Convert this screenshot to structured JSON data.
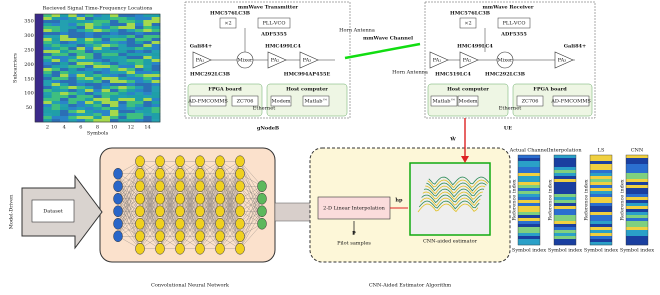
{
  "spectrogram": {
    "title": "Recieved Signal Time-Frequency Locations",
    "y_label": "Subcarriers",
    "x_label": "Symbols",
    "yticks": [
      50,
      100,
      150,
      200,
      250,
      300,
      350
    ],
    "xticks": [
      2,
      4,
      6,
      8,
      10,
      12,
      14
    ]
  },
  "gnodeb": {
    "name": "gNodeB",
    "title": "mmWave Transmitter",
    "lo": "HMC576LC3B",
    "mult": "×2",
    "pll": "PLL-VCO",
    "pll_chip": "ADF5355",
    "amp": "Gali84+",
    "mixer_chip": "HMC499LC4",
    "pa1": "PA₁",
    "mixer": "Mixer",
    "pa2": "PA₂",
    "pa3": "PA₃",
    "lna_chip": "HMC292LC3B",
    "pa_chip": "HMC994AP455E",
    "fpga": "FPGA board",
    "host": "Host computer",
    "fmc": "AD-FMCOMMS",
    "zc": "ZC706",
    "eth": "Ethernet",
    "modem": "Modem",
    "matlab": "Matlab™",
    "antenna": "Horn Antenna"
  },
  "channel": "mmWave Channel",
  "ue": {
    "name": "UE",
    "title": "mmWave Receiver",
    "lo": "HMC576LC3B",
    "mult": "×2",
    "pll": "PLL-VCO",
    "pll_chip": "ADF5355",
    "amp": "Gali84+",
    "mixer_chip": "HMC499LC4",
    "pa1": "PA₁",
    "mixer": "Mixer",
    "pa2": "PA₂",
    "pa3": "PA₃",
    "lna_chip": "HMC519LC4",
    "pa_chip": "HMC292LC3B",
    "fpga": "FPGA board",
    "host": "Host computer",
    "fmc": "AD-FMCOMMS",
    "zc": "ZC706",
    "eth": "Ethernet",
    "modem": "Modem",
    "matlab": "Matlab™",
    "antenna": "Horn Antenna"
  },
  "feedback": "Ŵ",
  "model_driven": "Model-Driven",
  "dataset": "Dataset",
  "cnn_caption": "Convolutional Neural Network",
  "estimator": {
    "interp": "2-D Linear Interpolation",
    "hp": "ĥp",
    "p": "p",
    "pilot": "Pilot samples",
    "cnn": "CNN-aided estimator",
    "caption": "CNN-Aided Estimator Algorithm"
  },
  "results": {
    "panels": [
      "Actual Channel",
      "Interpolation",
      "LS",
      "CNN"
    ],
    "y_label": "Reference index",
    "x_label": "Symbol index"
  }
}
